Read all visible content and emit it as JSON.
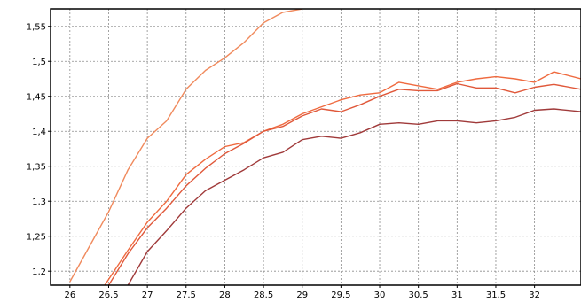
{
  "chart_data": {
    "type": "line",
    "title": "",
    "xlabel": "",
    "ylabel": "",
    "xlim": [
      25.75,
      32.6
    ],
    "ylim": [
      1.18,
      1.575
    ],
    "x_ticks": [
      {
        "value": 26,
        "label": "26"
      },
      {
        "value": 26.5,
        "label": "26.5"
      },
      {
        "value": 27,
        "label": "27"
      },
      {
        "value": 27.5,
        "label": "27.5"
      },
      {
        "value": 28,
        "label": "28"
      },
      {
        "value": 28.5,
        "label": "28.5"
      },
      {
        "value": 29,
        "label": "29"
      },
      {
        "value": 29.5,
        "label": "29.5"
      },
      {
        "value": 30,
        "label": "30"
      },
      {
        "value": 30.5,
        "label": "30.5"
      },
      {
        "value": 31,
        "label": "31"
      },
      {
        "value": 31.5,
        "label": "31.5"
      },
      {
        "value": 32,
        "label": "32"
      }
    ],
    "y_ticks": [
      {
        "value": 1.2,
        "label": "1,2"
      },
      {
        "value": 1.25,
        "label": "1,25"
      },
      {
        "value": 1.3,
        "label": "1,3"
      },
      {
        "value": 1.35,
        "label": "1,35"
      },
      {
        "value": 1.4,
        "label": "1,4"
      },
      {
        "value": 1.45,
        "label": "1,45"
      },
      {
        "value": 1.5,
        "label": "1,5"
      },
      {
        "value": 1.55,
        "label": "1,55"
      }
    ],
    "grid": true,
    "legend": "none",
    "series": [
      {
        "color": "#f08a5d",
        "x": [
          26.0,
          26.25,
          26.5,
          26.75,
          27.0,
          27.25,
          27.5,
          27.75,
          28.0,
          28.25,
          28.5,
          28.75,
          29.0
        ],
        "y": [
          1.185,
          1.235,
          1.285,
          1.345,
          1.39,
          1.415,
          1.46,
          1.487,
          1.505,
          1.527,
          1.555,
          1.57,
          1.575
        ]
      },
      {
        "color": "#ef6a3f",
        "x": [
          26.45,
          26.75,
          27.0,
          27.25,
          27.5,
          27.75,
          28.0,
          28.25,
          28.5,
          28.75,
          29.0,
          29.25,
          29.5,
          29.75,
          30.0,
          30.25,
          30.5,
          30.75,
          31.0,
          31.25,
          31.5,
          31.75,
          32.0,
          32.25,
          32.6
        ],
        "y": [
          1.18,
          1.23,
          1.27,
          1.3,
          1.338,
          1.36,
          1.378,
          1.384,
          1.4,
          1.41,
          1.425,
          1.435,
          1.445,
          1.452,
          1.455,
          1.47,
          1.465,
          1.46,
          1.47,
          1.475,
          1.478,
          1.475,
          1.47,
          1.485,
          1.475
        ]
      },
      {
        "color": "#e0583a",
        "x": [
          26.5,
          26.75,
          27.0,
          27.25,
          27.5,
          27.75,
          28.0,
          28.25,
          28.5,
          28.75,
          29.0,
          29.25,
          29.5,
          29.75,
          30.0,
          30.25,
          30.5,
          30.75,
          31.0,
          31.25,
          31.5,
          31.75,
          32.0,
          32.25,
          32.6
        ],
        "y": [
          1.18,
          1.225,
          1.262,
          1.29,
          1.322,
          1.347,
          1.368,
          1.383,
          1.4,
          1.407,
          1.422,
          1.432,
          1.428,
          1.438,
          1.45,
          1.46,
          1.458,
          1.458,
          1.468,
          1.462,
          1.462,
          1.455,
          1.463,
          1.467,
          1.46
        ]
      },
      {
        "color": "#a03a3a",
        "x": [
          26.75,
          27.0,
          27.25,
          27.5,
          27.75,
          28.0,
          28.25,
          28.5,
          28.75,
          29.0,
          29.25,
          29.5,
          29.75,
          30.0,
          30.25,
          30.5,
          30.75,
          31.0,
          31.25,
          31.5,
          31.75,
          32.0,
          32.25,
          32.6
        ],
        "y": [
          1.18,
          1.228,
          1.258,
          1.29,
          1.315,
          1.33,
          1.345,
          1.362,
          1.37,
          1.388,
          1.393,
          1.39,
          1.398,
          1.41,
          1.412,
          1.41,
          1.415,
          1.415,
          1.412,
          1.415,
          1.42,
          1.43,
          1.432,
          1.428
        ]
      }
    ]
  }
}
